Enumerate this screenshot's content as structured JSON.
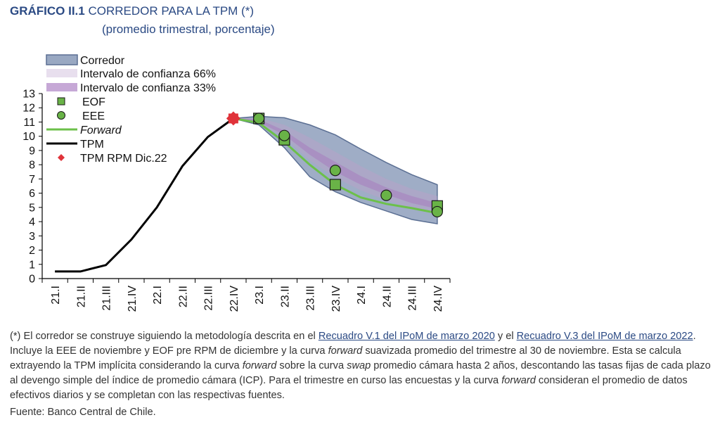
{
  "header": {
    "label": "GRÁFICO II.1",
    "title": "CORREDOR PARA LA TPM (*)",
    "subtitle": "(promedio trimestral, porcentaje)"
  },
  "chart_data": {
    "type": "line",
    "categories": [
      "21.I",
      "21.II",
      "21.III",
      "21.IV",
      "22.I",
      "22.II",
      "22.III",
      "22.IV",
      "23.I",
      "23.II",
      "23.III",
      "23.IV",
      "24.I",
      "24.II",
      "24.III",
      "24.IV"
    ],
    "ylim": [
      0,
      13
    ],
    "yticks": [
      0,
      1,
      2,
      3,
      4,
      5,
      6,
      7,
      8,
      9,
      10,
      11,
      12,
      13
    ],
    "legend": {
      "corredor": "Corredor",
      "ic66": "Intervalo de confianza 66%",
      "ic33": "Intervalo de confianza 33%",
      "eof": "EOF",
      "eee": "EEE",
      "forward": "Forward",
      "tpm": "TPM",
      "tpm_rpm": "TPM RPM Dic.22"
    },
    "colors": {
      "corredor": "#7f92b3",
      "corredor_edge": "#5b6f93",
      "ic66": "#b7a3c8",
      "ic33": "#a681be",
      "marker": "#69b347",
      "forward": "#6cc04a",
      "tpm": "#000000",
      "tpm_rpm": "#e0333a"
    },
    "series": [
      {
        "name": "TPM",
        "x": [
          0,
          1,
          2,
          3,
          4,
          5,
          6,
          7
        ],
        "values": [
          0.5,
          0.5,
          0.95,
          2.75,
          5.0,
          7.9,
          9.95,
          11.25
        ]
      },
      {
        "name": "Forward",
        "x": [
          7,
          8,
          9,
          10,
          11,
          12,
          13,
          14,
          15
        ],
        "values": [
          11.25,
          10.95,
          9.6,
          8.0,
          6.6,
          5.7,
          5.25,
          4.95,
          4.6
        ]
      },
      {
        "name": "EOF",
        "x": [
          8,
          9,
          11,
          15
        ],
        "values": [
          11.25,
          9.75,
          6.6,
          5.1
        ]
      },
      {
        "name": "EEE",
        "x": [
          8,
          9,
          11,
          13,
          15
        ],
        "values": [
          11.25,
          10.05,
          7.6,
          5.85,
          4.7
        ]
      },
      {
        "name": "TPM RPM Dic.22",
        "x": [
          7
        ],
        "values": [
          11.25
        ]
      }
    ],
    "bands": {
      "corredor": {
        "x": [
          7,
          8,
          9,
          10,
          11,
          12,
          13,
          14,
          15
        ],
        "upper": [
          11.25,
          11.4,
          11.3,
          10.8,
          10.1,
          9.1,
          8.15,
          7.3,
          6.6
        ],
        "lower": [
          11.25,
          10.8,
          9.2,
          7.15,
          6.1,
          5.35,
          4.75,
          4.15,
          3.85
        ]
      },
      "ic66": {
        "x": [
          7,
          8,
          9,
          10,
          11,
          12,
          13,
          14,
          15
        ],
        "upper": [
          11.25,
          11.3,
          10.8,
          9.9,
          8.9,
          7.9,
          7.0,
          6.3,
          5.8
        ],
        "lower": [
          11.25,
          10.9,
          9.9,
          8.3,
          7.1,
          6.2,
          5.5,
          4.9,
          4.5
        ]
      },
      "ic33": {
        "x": [
          7,
          8,
          9,
          10,
          11,
          12,
          13,
          14,
          15
        ],
        "upper": [
          11.25,
          11.2,
          10.4,
          9.2,
          8.2,
          7.2,
          6.4,
          5.8,
          5.3
        ],
        "lower": [
          11.25,
          11.0,
          10.1,
          8.7,
          7.5,
          6.6,
          5.9,
          5.3,
          4.9
        ]
      }
    }
  },
  "note": {
    "part1": "(*) El corredor se construye siguiendo la metodología descrita en el ",
    "link1": "Recuadro V.1 del IPoM de marzo 2020",
    "part2": " y el ",
    "link2": "Recuadro V.3 del IPoM de marzo 2022",
    "part3": ". Incluye la EEE de noviembre y EOF pre RPM de diciembre y la curva ",
    "em1": "forward",
    "part4": " suavizada promedio del trimestre al 30 de noviembre. Esta se calcula extrayendo la TPM implícita considerando la curva ",
    "em2": "forward",
    "part5": " sobre la curva ",
    "em3": "swap",
    "part6": " promedio cámara hasta 2 años, descontando las tasas fijas de cada plazo al devengo simple del índice de promedio cámara (ICP). Para el trimestre en curso las encuestas y la curva ",
    "em4": "forward",
    "part7": " consideran el promedio de datos efectivos diarios y se completan con las respectivas fuentes.",
    "source": "Fuente: Banco Central de Chile."
  }
}
